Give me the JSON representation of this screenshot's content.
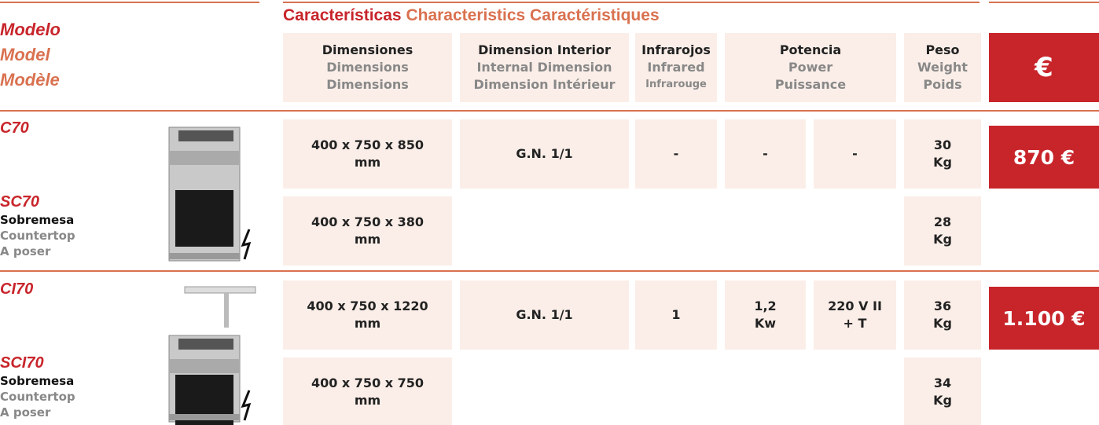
{
  "header": {
    "model_labels": [
      "Modelo",
      "Model",
      "Modèle"
    ],
    "section_title": [
      "Características",
      "Characteristics",
      "Caractéristiques"
    ],
    "columns": {
      "dimensions": [
        "Dimensiones",
        "Dimensions",
        "Dimensions"
      ],
      "interior": [
        "Dimension Interior",
        "Internal Dimension",
        "Dimension Intérieur"
      ],
      "infrared": [
        "Infrarojos",
        "Infrared",
        "Infrarouge"
      ],
      "power": [
        "Potencia",
        "Power",
        "Puissance"
      ],
      "weight": [
        "Peso",
        "Weight",
        "Poids"
      ]
    },
    "price_symbol": "€"
  },
  "products": [
    {
      "model": "C70",
      "variant": "SC70",
      "variant_labels": [
        "Sobremesa",
        "Countertop",
        "A poser"
      ],
      "rows": [
        {
          "dimensions": [
            "400 x 750 x 850",
            "mm"
          ],
          "interior": "G.N. 1/1",
          "infrared": "-",
          "power": [
            "-"
          ],
          "voltage": [
            "-"
          ],
          "weight": [
            "30",
            "Kg"
          ]
        },
        {
          "dimensions": [
            "400 x 750 x 380",
            "mm"
          ],
          "weight": [
            "28",
            "Kg"
          ]
        }
      ],
      "price": "870 €"
    },
    {
      "model": "CI70",
      "variant": "SCI70",
      "variant_labels": [
        "Sobremesa",
        "Countertop",
        "A poser"
      ],
      "rows": [
        {
          "dimensions": [
            "400 x 750 x 1220",
            "mm"
          ],
          "interior": "G.N. 1/1",
          "infrared": "1",
          "power": [
            "1,2",
            "Kw"
          ],
          "voltage": [
            "220 V II",
            "+ T"
          ],
          "weight": [
            "36",
            "Kg"
          ]
        },
        {
          "dimensions": [
            "400 x 750 x 750",
            "mm"
          ],
          "weight": [
            "34",
            "Kg"
          ]
        }
      ],
      "price": "1.100 €"
    }
  ]
}
